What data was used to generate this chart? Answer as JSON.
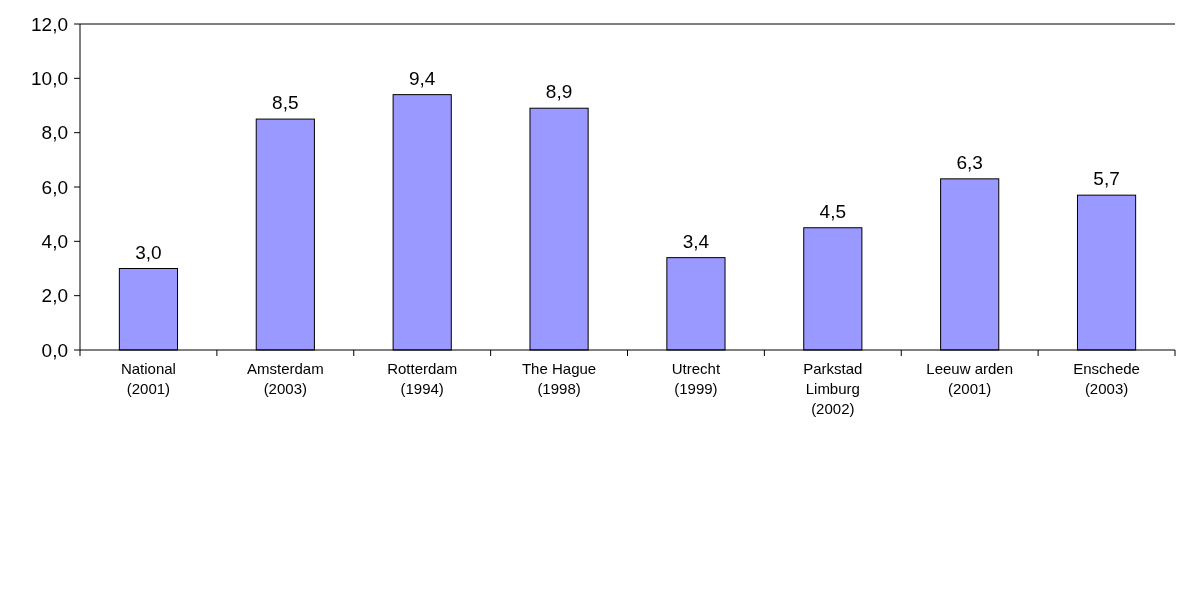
{
  "chart_data": {
    "type": "bar",
    "categories": [
      "National\n(2001)",
      "Amsterdam\n(2003)",
      "Rotterdam\n(1994)",
      "The Hague\n(1998)",
      "Utrecht\n(1999)",
      "Parkstad\nLimburg\n(2002)",
      "Leeuw arden\n(2001)",
      "Enschede\n(2003)"
    ],
    "values": [
      3.0,
      8.5,
      9.4,
      8.9,
      3.4,
      4.5,
      6.3,
      5.7
    ],
    "value_labels": [
      "3,0",
      "8,5",
      "9,4",
      "8,9",
      "3,4",
      "4,5",
      "6,3",
      "5,7"
    ],
    "color": "#9999ff",
    "ylim": [
      0,
      12
    ],
    "yticks": [
      {
        "value": 0,
        "label": "0,0"
      },
      {
        "value": 2,
        "label": "2,0"
      },
      {
        "value": 4,
        "label": "4,0"
      },
      {
        "value": 6,
        "label": "6,0"
      },
      {
        "value": 8,
        "label": "8,0"
      },
      {
        "value": 10,
        "label": "10,0"
      },
      {
        "value": 12,
        "label": "12,0"
      }
    ],
    "grid": false
  }
}
